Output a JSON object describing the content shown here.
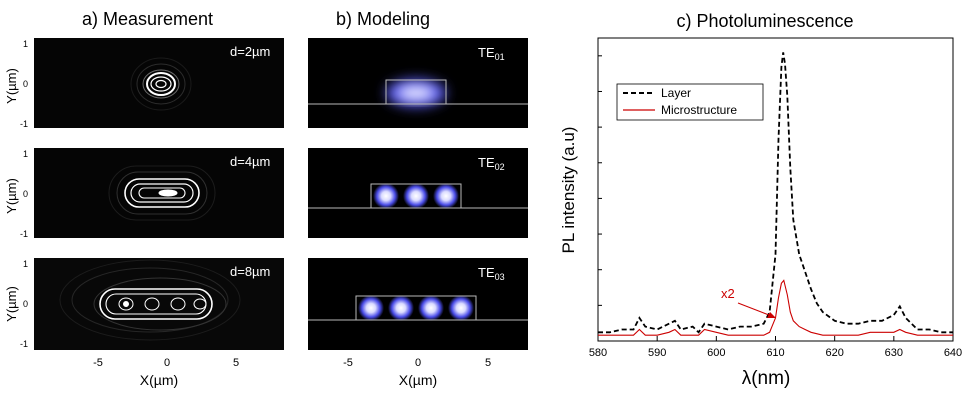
{
  "panel_a": {
    "title": "a) Measurement",
    "rows": [
      {
        "label": "d=2µm",
        "yticks": [
          "1",
          "0",
          "-1"
        ]
      },
      {
        "label": "d=4µm",
        "yticks": [
          "1",
          "0",
          "-1"
        ]
      },
      {
        "label": "d=8µm",
        "yticks": [
          "1",
          "0",
          "-1"
        ]
      }
    ],
    "ylabel": "Y(µm)",
    "xticks": [
      "-5",
      "0",
      "5"
    ],
    "xlabel": "X(µm)"
  },
  "panel_b": {
    "title": "b) Modeling",
    "modes": [
      {
        "name": "TE",
        "sub": "01",
        "lobes": 1
      },
      {
        "name": "TE",
        "sub": "02",
        "lobes": 3
      },
      {
        "name": "TE",
        "sub": "03",
        "lobes": 4
      }
    ],
    "xticks": [
      "-5",
      "0",
      "5"
    ],
    "xlabel": "X(µm)"
  },
  "chart_data": {
    "type": "line",
    "title": "c) Photoluminescence",
    "xlabel": "λ(nm)",
    "ylabel": "PL intensity (a.u)",
    "xlim": [
      580,
      640
    ],
    "ylim": [
      0,
      1.05
    ],
    "xticks": [
      "580",
      "590",
      "600",
      "610",
      "620",
      "630",
      "640"
    ],
    "legend": {
      "position": "top-left"
    },
    "annotation": {
      "text": "x2",
      "color": "#cc0000"
    },
    "series": [
      {
        "name": "Layer",
        "style": "dashed",
        "color": "#000000",
        "x": [
          580,
          582,
          584,
          586,
          587,
          588,
          590,
          592,
          593,
          594,
          596,
          597,
          598,
          600,
          602,
          604,
          606,
          608,
          609,
          610,
          610.5,
          611,
          611.3,
          611.6,
          612,
          612.5,
          613,
          614,
          615,
          616,
          617,
          618,
          620,
          622,
          624,
          626,
          628,
          630,
          631,
          632,
          634,
          636,
          638,
          640
        ],
        "y": [
          0.03,
          0.03,
          0.04,
          0.04,
          0.08,
          0.05,
          0.04,
          0.06,
          0.07,
          0.04,
          0.05,
          0.03,
          0.06,
          0.05,
          0.04,
          0.05,
          0.05,
          0.06,
          0.1,
          0.3,
          0.7,
          0.95,
          1.0,
          0.96,
          0.85,
          0.6,
          0.42,
          0.3,
          0.24,
          0.18,
          0.13,
          0.1,
          0.07,
          0.06,
          0.06,
          0.07,
          0.07,
          0.09,
          0.12,
          0.08,
          0.04,
          0.04,
          0.03,
          0.03
        ]
      },
      {
        "name": "Microstructure",
        "style": "solid",
        "color": "#cc0000",
        "x": [
          580,
          582,
          584,
          586,
          587,
          588,
          590,
          592,
          593,
          594,
          596,
          597,
          598,
          600,
          602,
          604,
          606,
          608,
          609,
          610,
          610.5,
          611,
          611.4,
          612,
          612.5,
          613,
          614,
          615,
          616,
          618,
          620,
          622,
          624,
          626,
          628,
          630,
          631,
          632,
          634,
          636,
          638,
          640
        ],
        "y": [
          0.02,
          0.02,
          0.02,
          0.02,
          0.04,
          0.02,
          0.02,
          0.03,
          0.04,
          0.02,
          0.02,
          0.02,
          0.04,
          0.03,
          0.02,
          0.02,
          0.02,
          0.02,
          0.03,
          0.08,
          0.15,
          0.2,
          0.21,
          0.16,
          0.1,
          0.07,
          0.05,
          0.04,
          0.03,
          0.02,
          0.02,
          0.02,
          0.02,
          0.03,
          0.03,
          0.03,
          0.04,
          0.03,
          0.02,
          0.02,
          0.02,
          0.02
        ]
      }
    ]
  }
}
